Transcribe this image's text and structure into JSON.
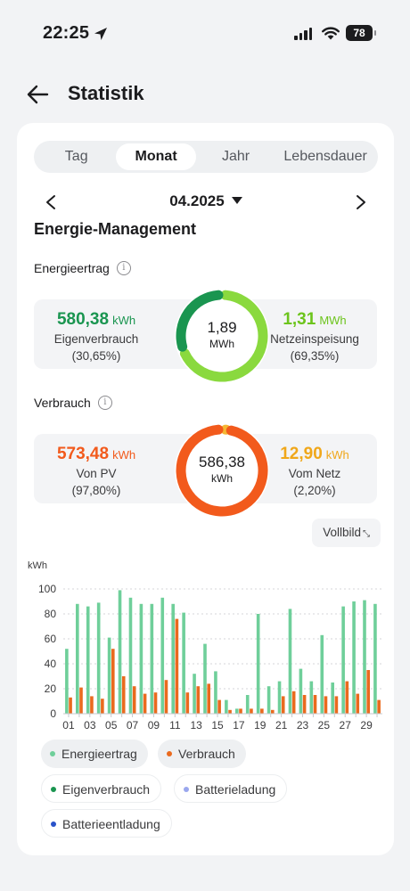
{
  "status_bar": {
    "time": "22:25",
    "battery": "78"
  },
  "header": {
    "title": "Statistik"
  },
  "tabs": [
    {
      "label": "Tag",
      "active": false
    },
    {
      "label": "Monat",
      "active": true
    },
    {
      "label": "Jahr",
      "active": false
    },
    {
      "label": "Lebensdauer",
      "active": false
    }
  ],
  "date": {
    "label": "04.2025"
  },
  "section_title": "Energie-Management",
  "energieertrag": {
    "label": "Energieertrag",
    "left": {
      "value": "580,38",
      "unit": "kWh",
      "label": "Eigenverbrauch",
      "percent": "(30,65%)"
    },
    "center": {
      "value": "1,89",
      "unit": "MWh"
    },
    "right": {
      "value": "1,31",
      "unit": "MWh",
      "label": "Netzeinspeisung",
      "percent": "(69,35%)"
    },
    "share_left": 0.3065,
    "colors": {
      "left": "#1a9550",
      "right": "#8ad93e"
    }
  },
  "verbrauch": {
    "label": "Verbrauch",
    "left": {
      "value": "573,48",
      "unit": "kWh",
      "label": "Von PV",
      "percent": "(97,80%)"
    },
    "center": {
      "value": "586,38",
      "unit": "kWh"
    },
    "right": {
      "value": "12,90",
      "unit": "kWh",
      "label": "Vom Netz",
      "percent": "(2,20%)"
    },
    "share_left": 0.978,
    "colors": {
      "left": "#f25a1c",
      "right": "#f5b733"
    }
  },
  "vollbild": {
    "label": "Vollbild"
  },
  "chart_data": {
    "type": "bar",
    "ylabel": "kWh",
    "ylim": [
      0,
      100
    ],
    "yticks": [
      "0",
      "20",
      "40",
      "60",
      "80",
      "100"
    ],
    "x_labels": [
      "01",
      "03",
      "05",
      "07",
      "09",
      "11",
      "13",
      "15",
      "17",
      "19",
      "21",
      "23",
      "25",
      "27",
      "29"
    ],
    "categories": [
      "01",
      "02",
      "03",
      "04",
      "05",
      "06",
      "07",
      "08",
      "09",
      "10",
      "11",
      "12",
      "13",
      "14",
      "15",
      "16",
      "17",
      "18",
      "19",
      "20",
      "21",
      "22",
      "23",
      "24",
      "25",
      "26",
      "27",
      "28",
      "29",
      "30"
    ],
    "series": [
      {
        "name": "Energieertrag",
        "color": "#6fcf9a",
        "values": [
          52,
          88,
          86,
          89,
          61,
          99,
          93,
          88,
          88,
          93,
          88,
          81,
          32,
          56,
          34,
          11,
          4,
          15,
          80,
          22,
          26,
          84,
          36,
          26,
          63,
          25,
          86,
          90,
          91,
          88
        ]
      },
      {
        "name": "Verbrauch",
        "color": "#ea6a1e",
        "values": [
          13,
          21,
          14,
          12,
          52,
          30,
          22,
          16,
          17,
          27,
          76,
          17,
          22,
          24,
          11,
          3,
          4,
          4,
          4,
          3,
          14,
          18,
          15,
          15,
          14,
          14,
          26,
          16,
          35,
          11
        ]
      }
    ]
  },
  "legend": [
    {
      "label": "Energieertrag",
      "color": "#6fcf9a",
      "style": "filled"
    },
    {
      "label": "Verbrauch",
      "color": "#ea6a1e",
      "style": "filled"
    },
    {
      "label": "Eigenverbrauch",
      "color": "#1a9550",
      "style": "outline"
    },
    {
      "label": "Batterieladung",
      "color": "#9aa7ee",
      "style": "outline"
    },
    {
      "label": "Batterieentladung",
      "color": "#2952c9",
      "style": "outline"
    }
  ]
}
